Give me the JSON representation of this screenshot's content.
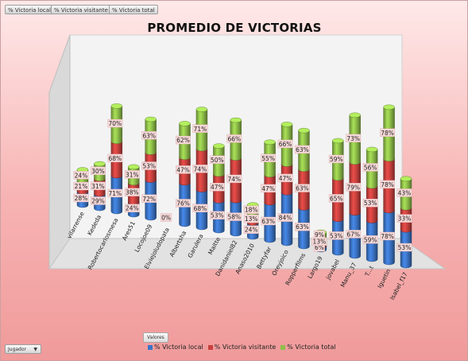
{
  "pivot_buttons": [
    "% Victoria local",
    "% Victoria visitante",
    "% Victoria total"
  ],
  "values_button": "Valores",
  "filter_button": "Jugador",
  "chart_data": {
    "type": "bar",
    "stacked": true,
    "three_d": true,
    "title": "PROMEDIO DE VICTORIAS",
    "categories": [
      "vilarrense",
      "Kededa",
      "Robertocarlosmesa",
      "Ares51",
      "Locojoe09",
      "Elviejoludopata",
      "Albertsha",
      "Garulera",
      "Maitte",
      "Danidaniel82",
      "Anaso2010",
      "Bettyfar",
      "Oreyjoico",
      "Ropperfilms",
      "Largo19",
      "jovabel",
      "Manu_37",
      "T...t",
      "Iguetin",
      "Isabel_f17"
    ],
    "series": [
      {
        "name": "% Victoria local",
        "color": "#3b74c6",
        "values": [
          28,
          29,
          71,
          24,
          72,
          0,
          76,
          68,
          53,
          58,
          24,
          63,
          84,
          63,
          6,
          53,
          67,
          59,
          78,
          53
        ],
        "labels": [
          "28%",
          "29%",
          "71%",
          "24%",
          "72%",
          "0%",
          "76%",
          "68%",
          "53%",
          "58%",
          "24%",
          "63%",
          "84%",
          "63%",
          "6%",
          "53%",
          "67%",
          "59%",
          "78%",
          "53%"
        ]
      },
      {
        "name": "% Victoria visitante",
        "color": "#c8413e",
        "values": [
          21,
          31,
          68,
          38,
          53,
          0,
          47,
          74,
          47,
          74,
          13,
          47,
          47,
          63,
          13,
          65,
          79,
          53,
          78,
          33
        ],
        "labels": [
          "21%",
          "31%",
          "68%",
          "38%",
          "53%",
          "",
          "47%",
          "74%",
          "47%",
          "74%",
          "13%",
          "47%",
          "47%",
          "63%",
          "13%",
          "65%",
          "79%",
          "53%",
          "78%",
          "33%"
        ]
      },
      {
        "name": "% Victoria total",
        "color": "#8fbf4a",
        "values": [
          24,
          30,
          70,
          31,
          63,
          0,
          62,
          71,
          50,
          66,
          18,
          55,
          66,
          63,
          9,
          59,
          73,
          56,
          78,
          43
        ],
        "labels": [
          "24%",
          "30%",
          "70%",
          "31%",
          "63%",
          "",
          "62%",
          "71%",
          "50%",
          "66%",
          "18%",
          "55%",
          "66%",
          "63%",
          "9%",
          "59%",
          "73%",
          "56%",
          "78%",
          "43%"
        ]
      }
    ],
    "ylim": [
      0,
      260
    ],
    "grid": false,
    "legend_position": "bottom"
  }
}
